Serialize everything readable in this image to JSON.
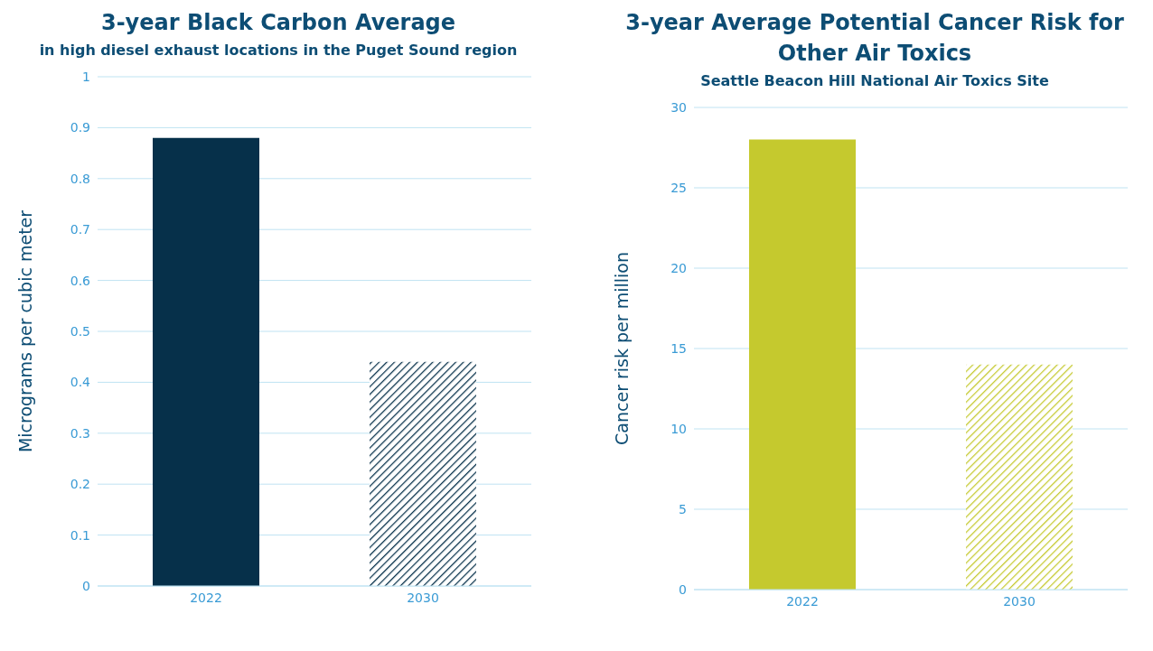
{
  "chart_data": [
    {
      "type": "bar",
      "title": "3-year Black Carbon Average",
      "subtitle": "in high diesel exhaust locations in the Puget Sound region",
      "ylabel": "Micrograms per cubic meter",
      "categories": [
        "2022",
        "2030"
      ],
      "values": [
        0.88,
        0.44
      ],
      "colors": [
        "#06304a",
        "#06304a"
      ],
      "ylim": [
        0,
        1
      ],
      "yticks": [
        0,
        0.1,
        0.2,
        0.3,
        0.4,
        0.5,
        0.6,
        0.7,
        0.8,
        0.9,
        1
      ],
      "grid": "y",
      "legend": false
    },
    {
      "type": "bar",
      "title": "3-year Average Potential Cancer Risk for Other Air Toxics",
      "subtitle": "Seattle Beacon Hill National Air Toxics Site",
      "ylabel": "Cancer risk per million",
      "categories": [
        "2022",
        "2030"
      ],
      "values": [
        28,
        14
      ],
      "colors": [
        "#c5c92e",
        "#c5c92e"
      ],
      "ylim": [
        0,
        30
      ],
      "yticks": [
        0,
        5,
        10,
        15,
        20,
        25,
        30
      ],
      "grid": "y",
      "legend": false
    }
  ]
}
